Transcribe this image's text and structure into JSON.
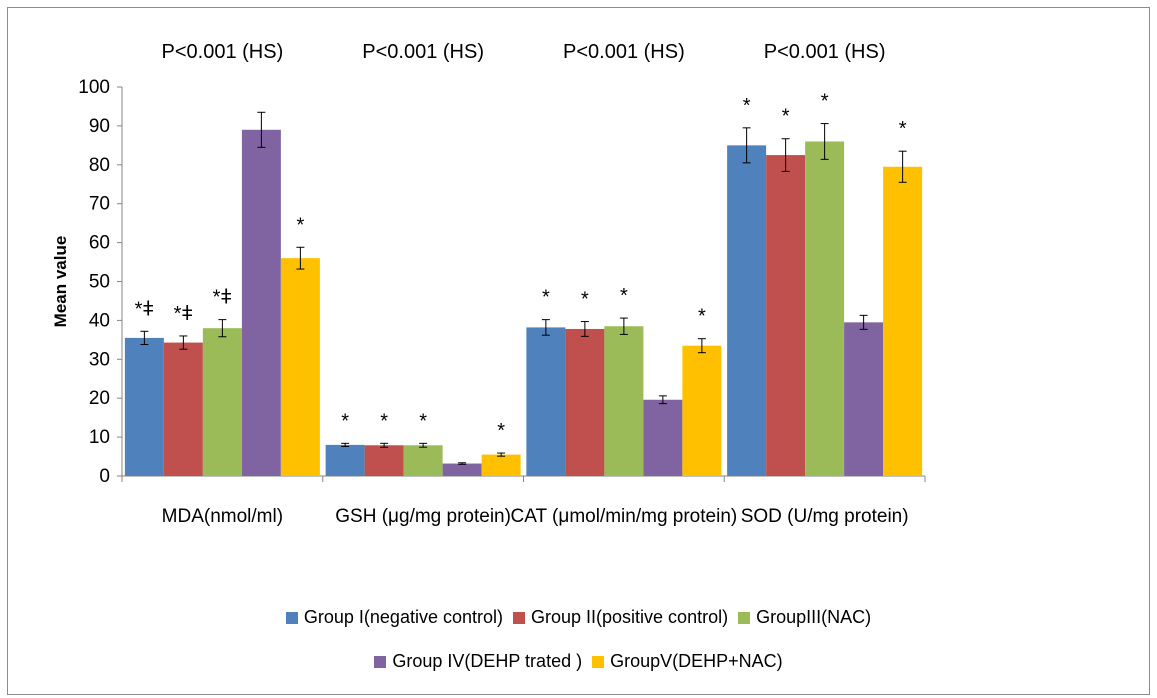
{
  "chart_data": {
    "type": "bar",
    "ylabel": "Mean value",
    "ylim": [
      0,
      100
    ],
    "yticks": [
      0,
      10,
      20,
      30,
      40,
      50,
      60,
      70,
      80,
      90,
      100
    ],
    "categories": [
      "MDA(nmol/ml)",
      "GSH (μg/mg protein)",
      "CAT (μmol/min/mg protein)",
      "SOD (U/mg protein)"
    ],
    "p_values": [
      "P<0.001 (HS)",
      "P<0.001 (HS)",
      "P<0.001 (HS)",
      "P<0.001 (HS)"
    ],
    "series": [
      {
        "name": "Group I(negative control)",
        "color": "#4f81bd",
        "values": [
          35.5,
          8.0,
          38.2,
          85.0
        ],
        "errors": [
          1.7,
          0.4,
          2.0,
          4.5
        ],
        "marks": [
          "*ǂ",
          "*",
          "*",
          "*"
        ]
      },
      {
        "name": "Group II(positive control)",
        "color": "#c0504d",
        "values": [
          34.3,
          7.9,
          37.8,
          82.5
        ],
        "errors": [
          1.7,
          0.5,
          1.9,
          4.2
        ],
        "marks": [
          "*ǂ",
          "*",
          "*",
          "*"
        ]
      },
      {
        "name": "GroupIII(NAC)",
        "color": "#9bbb59",
        "values": [
          38.0,
          7.9,
          38.5,
          86.0
        ],
        "errors": [
          2.2,
          0.5,
          2.1,
          4.6
        ],
        "marks": [
          "*ǂ",
          "*",
          "*",
          "*"
        ]
      },
      {
        "name": "Group IV(DEHP trated )",
        "color": "#8064a2",
        "values": [
          89.0,
          3.2,
          19.6,
          39.5
        ],
        "errors": [
          4.5,
          0.2,
          1.0,
          1.8
        ],
        "marks": [
          "",
          "",
          "",
          ""
        ]
      },
      {
        "name": "GroupV(DEHP+NAC)",
        "color": "#ffc000",
        "values": [
          56.0,
          5.5,
          33.5,
          79.5
        ],
        "errors": [
          2.8,
          0.4,
          1.8,
          4.0
        ],
        "marks": [
          "*",
          "*",
          "*",
          "*"
        ]
      }
    ]
  },
  "legend": {
    "rows": [
      [
        0,
        1,
        2
      ],
      [
        3,
        4
      ]
    ]
  }
}
